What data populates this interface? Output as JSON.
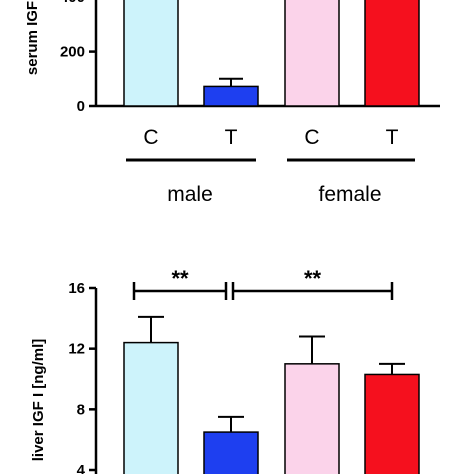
{
  "chart_data": [
    {
      "type": "bar",
      "ylabel": "serum IGF",
      "ylim": [
        0,
        500
      ],
      "ticks": [
        "0",
        "200",
        "400"
      ],
      "categories": [
        "C",
        "T",
        "C",
        "T"
      ],
      "groups": [
        "male",
        "female"
      ],
      "values": [
        480,
        72,
        480,
        480
      ],
      "errors": [
        0,
        28,
        0,
        0
      ],
      "colors": [
        "#cdf3fb",
        "#1e3ff0",
        "#fbd3ea",
        "#f5101e"
      ]
    },
    {
      "type": "bar",
      "ylabel": "liver IGF I [ng/ml]",
      "ylim": [
        4,
        16
      ],
      "ticks": [
        "4",
        "8",
        "12",
        "16"
      ],
      "values": [
        12.4,
        6.5,
        11.0,
        10.3
      ],
      "errors": [
        1.7,
        1.0,
        1.8,
        0.7
      ],
      "colors": [
        "#cdf3fb",
        "#1e3ff0",
        "#fbd3ea",
        "#f5101e"
      ],
      "significance": [
        {
          "label": "**",
          "from": 0,
          "to": 1
        },
        {
          "label": "**",
          "from": 1,
          "to": 3
        }
      ]
    }
  ]
}
